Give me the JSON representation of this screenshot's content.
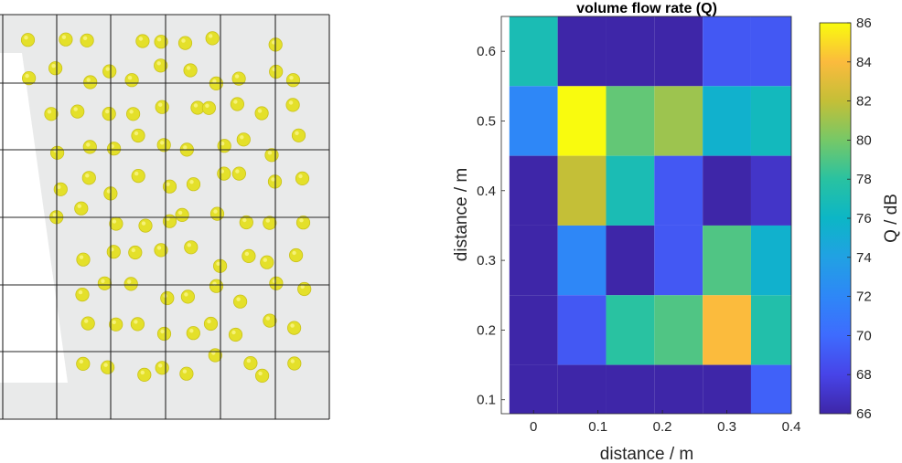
{
  "chart_data": [
    {
      "type": "image",
      "grid": {
        "columns": 5,
        "rows": 6
      },
      "region_color": "#e9eaea",
      "particle_color": "#e4e02a"
    },
    {
      "type": "heatmap",
      "title": "volume flow rate (Q)",
      "xlabel": "distance / m",
      "ylabel": "distance / m",
      "colorbar_label": "Q / dB",
      "x_ticks": [
        "0",
        "0.1",
        "0.2",
        "0.3",
        "0.4"
      ],
      "y_ticks": [
        "0.1",
        "0.2",
        "0.3",
        "0.4",
        "0.5",
        "0.6"
      ],
      "colorbar_ticks": [
        "66",
        "68",
        "70",
        "72",
        "74",
        "76",
        "78",
        "80",
        "82",
        "84",
        "86"
      ],
      "x": [
        0,
        0.075,
        0.15,
        0.225,
        0.3,
        0.375
      ],
      "y": [
        0.6,
        0.5,
        0.4,
        0.3,
        0.2,
        0.1
      ],
      "xlim": [
        -0.05,
        0.4
      ],
      "ylim": [
        0.08,
        0.65
      ],
      "clim": [
        66,
        86
      ],
      "colormap": "parula",
      "values": [
        [
          77,
          66,
          66,
          66,
          69,
          69
        ],
        [
          72,
          86,
          79.5,
          81,
          75.5,
          76.5
        ],
        [
          66,
          82,
          77,
          69,
          66,
          67
        ],
        [
          66,
          72,
          66,
          69,
          79,
          75.5
        ],
        [
          66,
          69,
          78,
          79,
          84,
          77.5
        ],
        [
          66,
          66,
          66,
          66,
          66,
          69.5
        ]
      ]
    }
  ]
}
